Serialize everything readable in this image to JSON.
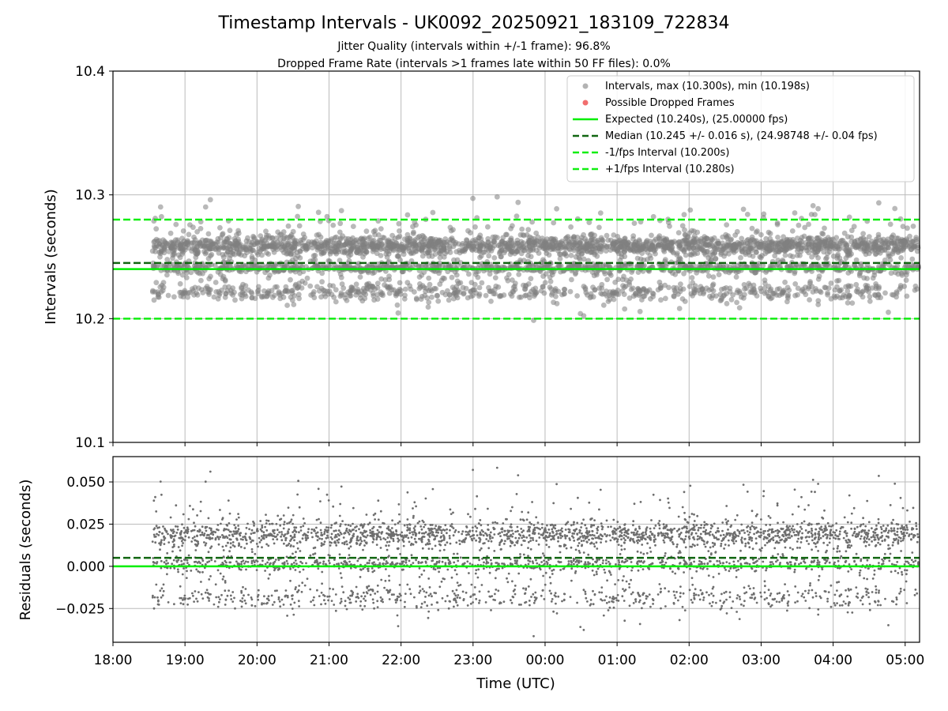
{
  "colors": {
    "scatter": "#808080",
    "scatter_residual": "#6e6e6e",
    "dropped": "#ee5555",
    "expected": "#00ee00",
    "median": "#116611",
    "bounds": "#11ee11",
    "grid": "#bbbbbb"
  },
  "chart_data": [
    {
      "type": "scatter",
      "id": "intervals",
      "title": "Timestamp Intervals - UK0092_20250921_183109_722834",
      "subtitle_lines": [
        "Jitter Quality (intervals within +/-1 frame): 96.8%",
        "Dropped Frame Rate (intervals >1 frames late within 50 FF files): 0.0%"
      ],
      "xlabel": "",
      "ylabel": "Intervals (seconds)",
      "ylim": [
        10.1,
        10.4
      ],
      "yticks": [
        10.1,
        10.2,
        10.3,
        10.4
      ],
      "ytick_labels": [
        "10.1",
        "10.2",
        "10.3",
        "10.4"
      ],
      "grid": true,
      "legend_position": "top-right",
      "series": [
        {
          "name": "Intervals, max (10.300s), min (10.198s)",
          "kind": "scatter",
          "max": 10.3,
          "min": 10.198,
          "start_hours": 18.55,
          "end_hours": 29.25,
          "count": 3750,
          "center": 10.252,
          "spread": 0.016
        },
        {
          "name": "Possible Dropped Frames",
          "kind": "scatter",
          "count": 0
        },
        {
          "name": "Expected (10.240s), (25.00000 fps)",
          "kind": "hline",
          "y": 10.24,
          "style": "solid"
        },
        {
          "name": "Median (10.245 +/- 0.016 s), (24.98748 +/- 0.04 fps)",
          "kind": "hline",
          "y": 10.245,
          "style": "dashed"
        },
        {
          "name": "-1/fps Interval (10.200s)",
          "kind": "hline",
          "y": 10.2,
          "style": "dashed"
        },
        {
          "name": "+1/fps Interval (10.280s)",
          "kind": "hline",
          "y": 10.28,
          "style": "dashed"
        }
      ]
    },
    {
      "type": "scatter",
      "id": "residuals",
      "xlabel": "Time (UTC)",
      "ylabel": "Residuals (seconds)",
      "xlim_hours": [
        18.0,
        29.2
      ],
      "xticks": [
        "18:00",
        "19:00",
        "20:00",
        "21:00",
        "22:00",
        "23:00",
        "00:00",
        "01:00",
        "02:00",
        "03:00",
        "04:00",
        "05:00"
      ],
      "ylim": [
        -0.045,
        0.065
      ],
      "yticks": [
        -0.025,
        0.0,
        0.025,
        0.05
      ],
      "ytick_labels": [
        "−0.025",
        "0.000",
        "0.025",
        "0.050"
      ],
      "grid": true,
      "series": [
        {
          "name": "Residuals",
          "kind": "scatter",
          "max": 0.06,
          "min": -0.042
        },
        {
          "name": "Expected",
          "kind": "hline",
          "y": 0.0,
          "style": "solid"
        },
        {
          "name": "Median",
          "kind": "hline",
          "y": 0.005,
          "style": "dashed"
        }
      ]
    }
  ]
}
